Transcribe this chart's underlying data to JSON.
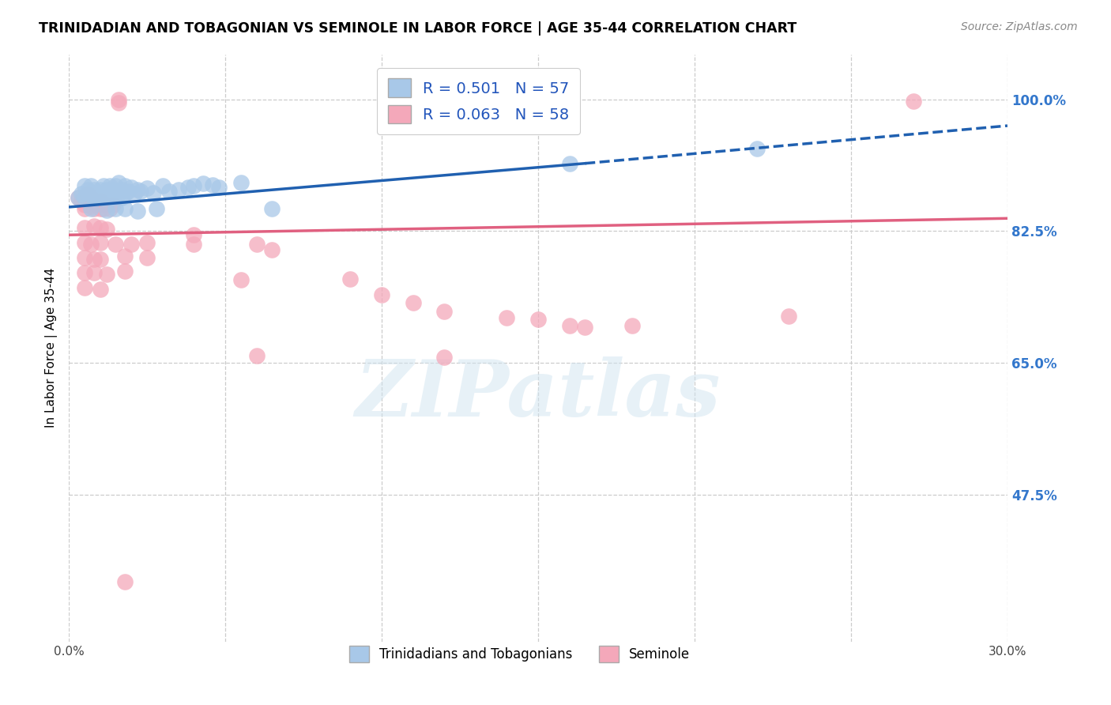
{
  "title": "TRINIDADIAN AND TOBAGONIAN VS SEMINOLE IN LABOR FORCE | AGE 35-44 CORRELATION CHART",
  "source": "Source: ZipAtlas.com",
  "ylabel": "In Labor Force | Age 35-44",
  "xlim": [
    0.0,
    0.3
  ],
  "ylim": [
    0.28,
    1.06
  ],
  "ytick_vals": [
    0.475,
    0.65,
    0.825,
    1.0
  ],
  "ytick_labels_right": [
    "47.5%",
    "65.0%",
    "82.5%",
    "100.0%"
  ],
  "xtick_vals": [
    0.0,
    0.05,
    0.1,
    0.15,
    0.2,
    0.25,
    0.3
  ],
  "xtick_labels": [
    "0.0%",
    "",
    "",
    "",
    "",
    "",
    "30.0%"
  ],
  "blue_label": "Trinidadians and Tobagonians",
  "pink_label": "Seminole",
  "blue_R": 0.501,
  "blue_N": 57,
  "pink_R": 0.063,
  "pink_N": 58,
  "blue_color": "#a8c8e8",
  "pink_color": "#f4a8ba",
  "blue_line_color": "#2060b0",
  "pink_line_color": "#e06080",
  "blue_scatter": [
    [
      0.003,
      0.87
    ],
    [
      0.004,
      0.875
    ],
    [
      0.005,
      0.885
    ],
    [
      0.005,
      0.87
    ],
    [
      0.006,
      0.88
    ],
    [
      0.006,
      0.875
    ],
    [
      0.007,
      0.885
    ],
    [
      0.007,
      0.875
    ],
    [
      0.008,
      0.87
    ],
    [
      0.008,
      0.88
    ],
    [
      0.009,
      0.875
    ],
    [
      0.009,
      0.87
    ],
    [
      0.01,
      0.88
    ],
    [
      0.01,
      0.875
    ],
    [
      0.01,
      0.87
    ],
    [
      0.011,
      0.885
    ],
    [
      0.011,
      0.875
    ],
    [
      0.011,
      0.87
    ],
    [
      0.012,
      0.88
    ],
    [
      0.012,
      0.875
    ],
    [
      0.013,
      0.885
    ],
    [
      0.013,
      0.875
    ],
    [
      0.014,
      0.88
    ],
    [
      0.014,
      0.87
    ],
    [
      0.015,
      0.885
    ],
    [
      0.015,
      0.875
    ],
    [
      0.016,
      0.89
    ],
    [
      0.016,
      0.875
    ],
    [
      0.017,
      0.88
    ],
    [
      0.017,
      0.87
    ],
    [
      0.018,
      0.885
    ],
    [
      0.018,
      0.875
    ],
    [
      0.019,
      0.878
    ],
    [
      0.02,
      0.883
    ],
    [
      0.021,
      0.875
    ],
    [
      0.022,
      0.88
    ],
    [
      0.023,
      0.878
    ],
    [
      0.025,
      0.882
    ],
    [
      0.027,
      0.876
    ],
    [
      0.03,
      0.885
    ],
    [
      0.032,
      0.878
    ],
    [
      0.035,
      0.88
    ],
    [
      0.038,
      0.883
    ],
    [
      0.04,
      0.885
    ],
    [
      0.043,
      0.888
    ],
    [
      0.046,
      0.886
    ],
    [
      0.048,
      0.883
    ],
    [
      0.055,
      0.889
    ],
    [
      0.007,
      0.855
    ],
    [
      0.012,
      0.853
    ],
    [
      0.015,
      0.855
    ],
    [
      0.018,
      0.855
    ],
    [
      0.022,
      0.852
    ],
    [
      0.028,
      0.855
    ],
    [
      0.065,
      0.855
    ],
    [
      0.22,
      0.935
    ],
    [
      0.16,
      0.915
    ]
  ],
  "pink_scatter": [
    [
      0.003,
      0.87
    ],
    [
      0.004,
      0.865
    ],
    [
      0.005,
      0.86
    ],
    [
      0.005,
      0.855
    ],
    [
      0.006,
      0.875
    ],
    [
      0.007,
      0.87
    ],
    [
      0.007,
      0.858
    ],
    [
      0.008,
      0.865
    ],
    [
      0.008,
      0.855
    ],
    [
      0.009,
      0.86
    ],
    [
      0.01,
      0.865
    ],
    [
      0.01,
      0.855
    ],
    [
      0.011,
      0.855
    ],
    [
      0.012,
      0.86
    ],
    [
      0.013,
      0.855
    ],
    [
      0.014,
      0.86
    ],
    [
      0.005,
      0.83
    ],
    [
      0.008,
      0.832
    ],
    [
      0.01,
      0.83
    ],
    [
      0.012,
      0.828
    ],
    [
      0.016,
      1.0
    ],
    [
      0.016,
      0.995
    ],
    [
      0.005,
      0.81
    ],
    [
      0.007,
      0.808
    ],
    [
      0.01,
      0.81
    ],
    [
      0.015,
      0.808
    ],
    [
      0.02,
      0.808
    ],
    [
      0.025,
      0.81
    ],
    [
      0.005,
      0.79
    ],
    [
      0.008,
      0.788
    ],
    [
      0.01,
      0.788
    ],
    [
      0.018,
      0.792
    ],
    [
      0.025,
      0.79
    ],
    [
      0.005,
      0.77
    ],
    [
      0.008,
      0.77
    ],
    [
      0.012,
      0.768
    ],
    [
      0.018,
      0.772
    ],
    [
      0.005,
      0.75
    ],
    [
      0.01,
      0.748
    ],
    [
      0.04,
      0.82
    ],
    [
      0.04,
      0.808
    ],
    [
      0.06,
      0.808
    ],
    [
      0.065,
      0.8
    ],
    [
      0.055,
      0.76
    ],
    [
      0.09,
      0.762
    ],
    [
      0.1,
      0.74
    ],
    [
      0.11,
      0.73
    ],
    [
      0.12,
      0.718
    ],
    [
      0.14,
      0.71
    ],
    [
      0.15,
      0.708
    ],
    [
      0.16,
      0.7
    ],
    [
      0.165,
      0.698
    ],
    [
      0.18,
      0.7
    ],
    [
      0.23,
      0.712
    ],
    [
      0.27,
      0.998
    ],
    [
      0.06,
      0.66
    ],
    [
      0.12,
      0.658
    ],
    [
      0.018,
      0.36
    ]
  ],
  "blue_trendline_solid": [
    [
      0.0,
      0.857
    ],
    [
      0.165,
      0.915
    ]
  ],
  "blue_trendline_dashed": [
    [
      0.165,
      0.915
    ],
    [
      0.3,
      0.965
    ]
  ],
  "pink_trendline": [
    [
      0.0,
      0.82
    ],
    [
      0.3,
      0.842
    ]
  ],
  "watermark_text": "ZIPatlas",
  "background_color": "#ffffff",
  "grid_color": "#cccccc"
}
